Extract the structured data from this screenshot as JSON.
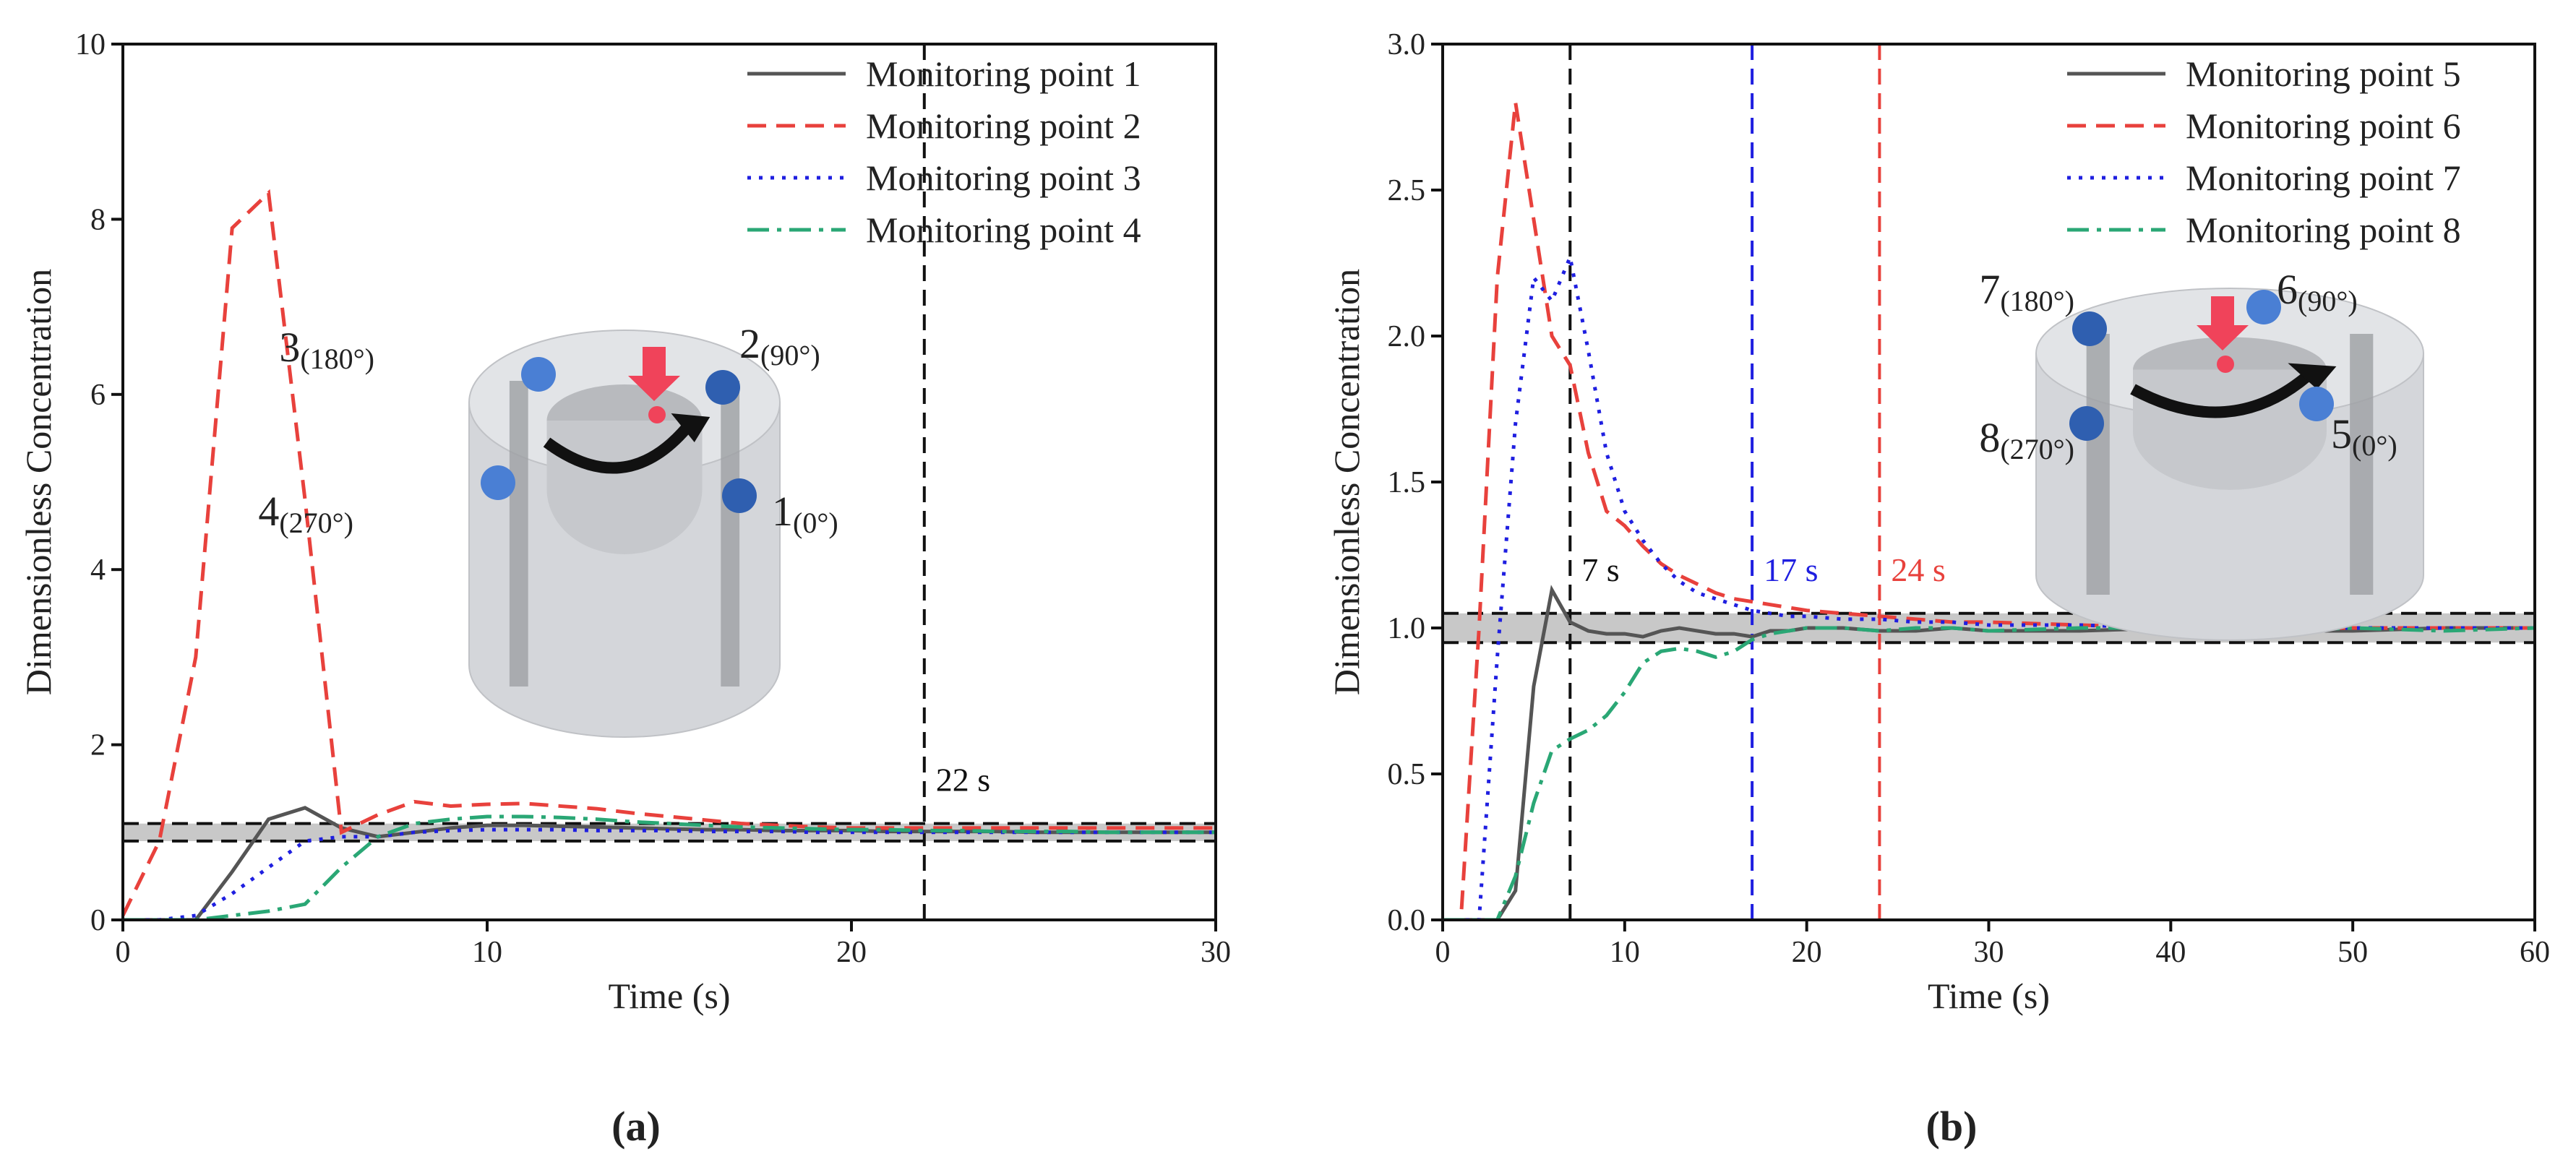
{
  "chart_data": [
    {
      "type": "line",
      "caption": "(a)",
      "x_label": "Time (s)",
      "y_label": "Dimensionless Concentration",
      "xlim": [
        0,
        30
      ],
      "ylim": [
        0,
        10
      ],
      "xticks": [
        0,
        10,
        20,
        30
      ],
      "yticks": [
        0,
        2,
        4,
        6,
        8,
        10
      ],
      "band": [
        0.9,
        1.1
      ],
      "band_color": "#c8c8c8",
      "markers": [
        {
          "x": 22,
          "label": "22 s",
          "color": "#111111"
        }
      ],
      "x": [
        0,
        1,
        2,
        3,
        4,
        5,
        6,
        7,
        8,
        9,
        10,
        11,
        12,
        13,
        14,
        15,
        16,
        17,
        18,
        19,
        20,
        21,
        22,
        23,
        24,
        25,
        26,
        27,
        28,
        29,
        30
      ],
      "series": [
        {
          "name": "Monitoring point 1",
          "color": "#555555",
          "style": "solid",
          "values": [
            0,
            0,
            0,
            0.55,
            1.15,
            1.28,
            1.05,
            0.95,
            1.0,
            1.05,
            1.08,
            1.08,
            1.07,
            1.06,
            1.05,
            1.04,
            1.03,
            1.03,
            1.02,
            1.02,
            1.02,
            1.01,
            1.01,
            1.01,
            1.01,
            1.0,
            1.0,
            1.0,
            1.0,
            1.0,
            1.0
          ]
        },
        {
          "name": "Monitoring point 2",
          "color": "#e8413c",
          "style": "dashed",
          "values": [
            0.05,
            0.9,
            3.0,
            7.9,
            8.3,
            4.8,
            1.0,
            1.2,
            1.35,
            1.3,
            1.32,
            1.33,
            1.3,
            1.27,
            1.22,
            1.18,
            1.14,
            1.1,
            1.08,
            1.06,
            1.05,
            1.05,
            1.05,
            1.05,
            1.05,
            1.05,
            1.05,
            1.05,
            1.05,
            1.05,
            1.05
          ]
        },
        {
          "name": "Monitoring point 3",
          "color": "#1f1fe0",
          "style": "dotted",
          "values": [
            0,
            0,
            0.05,
            0.3,
            0.6,
            0.9,
            0.95,
            0.95,
            1.0,
            1.02,
            1.03,
            1.03,
            1.03,
            1.02,
            1.02,
            1.02,
            1.01,
            1.01,
            1.01,
            1.0,
            1.0,
            1.0,
            1.0,
            1.0,
            1.0,
            1.0,
            1.0,
            1.0,
            1.0,
            1.0,
            1.0
          ]
        },
        {
          "name": "Monitoring point 4",
          "color": "#2aa775",
          "style": "dashdot",
          "values": [
            0,
            0,
            0,
            0.05,
            0.1,
            0.18,
            0.6,
            0.95,
            1.1,
            1.15,
            1.18,
            1.18,
            1.17,
            1.15,
            1.12,
            1.1,
            1.08,
            1.06,
            1.05,
            1.04,
            1.03,
            1.03,
            1.02,
            1.02,
            1.01,
            1.01,
            1.01,
            1.0,
            1.0,
            1.0,
            1.0
          ]
        }
      ],
      "inset_labels": [
        {
          "num": "3",
          "angle": "(180°)"
        },
        {
          "num": "2",
          "angle": "(90°)"
        },
        {
          "num": "4",
          "angle": "(270°)"
        },
        {
          "num": "1",
          "angle": "(0°)"
        }
      ]
    },
    {
      "type": "line",
      "caption": "(b)",
      "x_label": "Time (s)",
      "y_label": "Dimensionless Concentration",
      "xlim": [
        0,
        60
      ],
      "ylim": [
        0,
        3
      ],
      "xticks": [
        0,
        10,
        20,
        30,
        40,
        50,
        60
      ],
      "yticks": [
        {
          "value": 0,
          "label": "0.0"
        },
        0.5,
        {
          "value": 1,
          "label": "1.0"
        },
        1.5,
        {
          "value": 2,
          "label": "2.0"
        },
        2.5,
        {
          "value": 3,
          "label": "3.0"
        }
      ],
      "band": [
        0.95,
        1.05
      ],
      "band_color": "#c8c8c8",
      "markers": [
        {
          "x": 7,
          "label": "7 s",
          "color": "#111111"
        },
        {
          "x": 17,
          "label": "17 s",
          "color": "#1f1fe0"
        },
        {
          "x": 24,
          "label": "24 s",
          "color": "#e8413c"
        }
      ],
      "x": [
        0,
        1,
        2,
        3,
        4,
        5,
        6,
        7,
        8,
        9,
        10,
        11,
        12,
        13,
        14,
        15,
        16,
        17,
        18,
        19,
        20,
        22,
        24,
        26,
        28,
        30,
        35,
        40,
        45,
        50,
        55,
        60
      ],
      "series": [
        {
          "name": "Monitoring point 5",
          "color": "#555555",
          "style": "solid",
          "values": [
            0,
            0,
            0,
            0,
            0.1,
            0.8,
            1.13,
            1.02,
            0.99,
            0.98,
            0.98,
            0.97,
            0.99,
            1.0,
            0.99,
            0.98,
            0.98,
            0.97,
            0.99,
            0.99,
            1.0,
            1.0,
            0.99,
            0.99,
            1.0,
            0.99,
            0.99,
            1.0,
            0.99,
            0.99,
            1.0,
            1.0
          ]
        },
        {
          "name": "Monitoring point 6",
          "color": "#e8413c",
          "style": "dashed",
          "values": [
            0,
            0,
            1.0,
            2.2,
            2.8,
            2.4,
            2.0,
            1.9,
            1.6,
            1.4,
            1.35,
            1.28,
            1.22,
            1.18,
            1.15,
            1.12,
            1.1,
            1.09,
            1.08,
            1.07,
            1.06,
            1.05,
            1.04,
            1.03,
            1.02,
            1.02,
            1.01,
            1.0,
            1.0,
            1.0,
            1.0,
            1.0
          ]
        },
        {
          "name": "Monitoring point 7",
          "color": "#1f1fe0",
          "style": "dotted",
          "values": [
            0,
            0,
            0,
            0.9,
            1.7,
            2.2,
            2.12,
            2.27,
            1.95,
            1.6,
            1.4,
            1.3,
            1.22,
            1.16,
            1.12,
            1.1,
            1.08,
            1.06,
            1.05,
            1.04,
            1.04,
            1.03,
            1.03,
            1.02,
            1.02,
            1.01,
            1.01,
            1.0,
            1.0,
            1.0,
            1.0,
            1.0
          ]
        },
        {
          "name": "Monitoring point 8",
          "color": "#2aa775",
          "style": "dashdot",
          "values": [
            0,
            0,
            0,
            0,
            0.15,
            0.4,
            0.58,
            0.62,
            0.65,
            0.7,
            0.78,
            0.88,
            0.92,
            0.93,
            0.92,
            0.9,
            0.92,
            0.96,
            0.98,
            0.99,
            1.0,
            1.0,
            0.99,
            1.0,
            1.0,
            0.99,
            1.0,
            1.0,
            0.99,
            1.0,
            0.99,
            1.0
          ]
        }
      ],
      "inset_labels": [
        {
          "num": "7",
          "angle": "(180°)"
        },
        {
          "num": "6",
          "angle": "(90°)"
        },
        {
          "num": "8",
          "angle": "(270°)"
        },
        {
          "num": "5",
          "angle": "(0°)"
        }
      ]
    }
  ]
}
